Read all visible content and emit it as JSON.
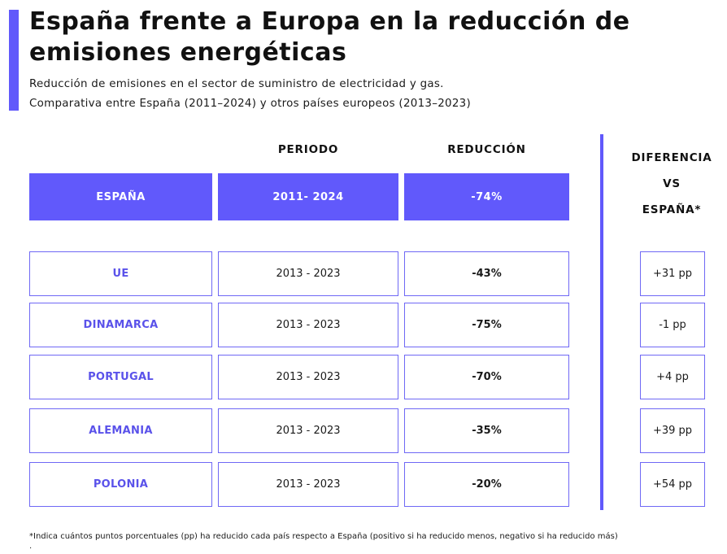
{
  "title_line1": "España frente a Europa en la reducción de",
  "title_line2": "emisiones energéticas",
  "subtitle_line1": "Reducción de emisiones en el sector de suministro de electricidad y gas.",
  "subtitle_line2": "Comparativa entre España (2011–2024) y otros países europeos (2013–2023)",
  "colors": {
    "accent": "#6159fb",
    "country_text": "#5a52ea",
    "border": "#6f68f5"
  },
  "chart_data": {
    "type": "table",
    "headers": {
      "period": "PERIODO",
      "reduction": "REDUCCIÓN",
      "difference_lines": [
        "DIFERENCIA",
        "VS",
        "ESPAÑA*"
      ]
    },
    "reference": {
      "country": "ESPAÑA",
      "period": "2011- 2024",
      "reduction": "-74%"
    },
    "rows": [
      {
        "country": "UE",
        "period": "2013 - 2023",
        "reduction": "-43%",
        "difference": "+31 pp"
      },
      {
        "country": "DINAMARCA",
        "period": "2013 - 2023",
        "reduction": "-75%",
        "difference": "-1 pp"
      },
      {
        "country": "PORTUGAL",
        "period": "2013 - 2023",
        "reduction": "-70%",
        "difference": "+4 pp"
      },
      {
        "country": "ALEMANIA",
        "period": "2013 - 2023",
        "reduction": "-35%",
        "difference": "+39 pp"
      },
      {
        "country": "POLONIA",
        "period": "2013 - 2023",
        "reduction": "-20%",
        "difference": "+54 pp"
      }
    ]
  },
  "footnote": "*Indica cuántos puntos porcentuales (pp) ha reducido cada país respecto a España (positivo si ha reducido menos, negativo si ha reducido más)",
  "footnote_end": "."
}
